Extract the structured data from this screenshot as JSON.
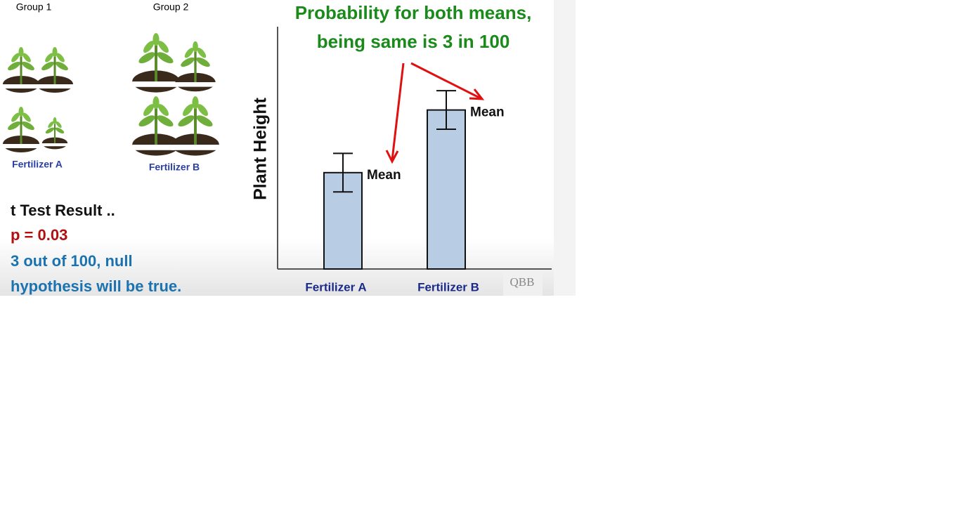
{
  "groups": [
    {
      "label": "Group 1",
      "caption": "Fertilizer A"
    },
    {
      "label": "Group 2",
      "caption": "Fertilizer B"
    }
  ],
  "result": {
    "heading": "t Test Result ..",
    "p_value": "p = 0.03",
    "interpretation": [
      "3 out of 100, null",
      "hypothesis will be true."
    ]
  },
  "watermark": "QBB",
  "chart_data": {
    "type": "bar",
    "title": [
      "Probability for both means,",
      "being same is 3 in 100"
    ],
    "y_label": "Plant Height",
    "categories": [
      "Fertilizer A",
      "Fertilizer B"
    ],
    "values": [
      40,
      66
    ],
    "errors": [
      8,
      8
    ],
    "value_labels": [
      "Mean",
      "Mean"
    ],
    "color": "#b8cce4",
    "ylim": [
      0,
      100
    ]
  }
}
